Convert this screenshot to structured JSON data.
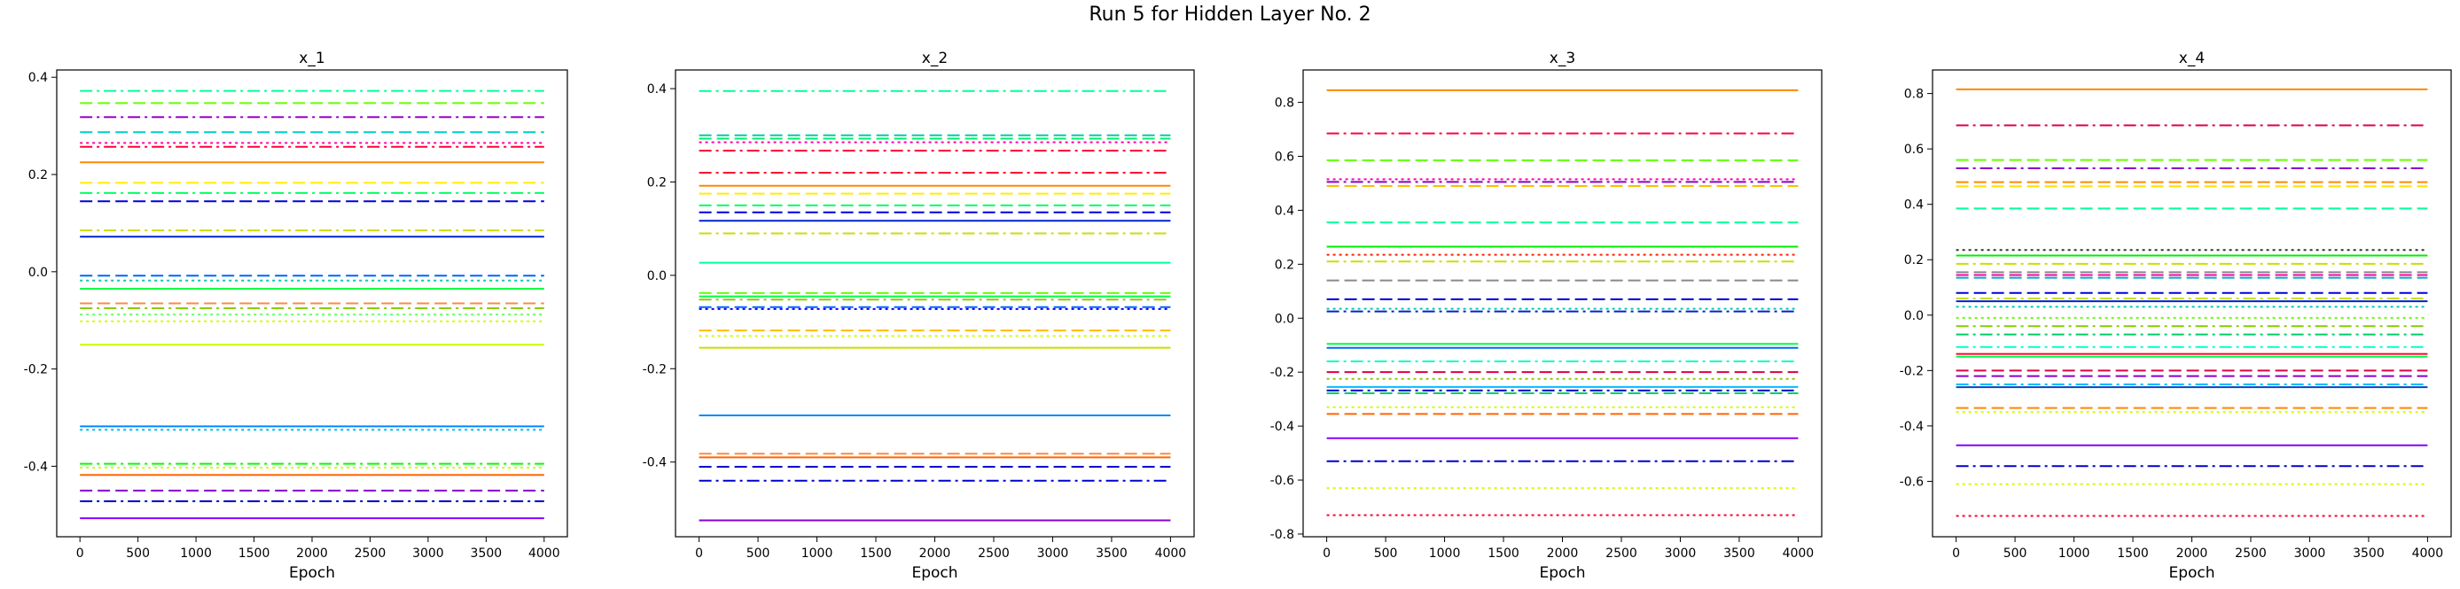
{
  "figure": {
    "suptitle": "Run 5 for Hidden Layer No. 2"
  },
  "chart_data": [
    {
      "type": "line",
      "title": "x_1",
      "xlabel": "Epoch",
      "ylabel": "",
      "xlim": [
        -200,
        4200
      ],
      "ylim": [
        -0.545,
        0.415
      ],
      "xticks": [
        0,
        500,
        1000,
        1500,
        2000,
        2500,
        3000,
        3500,
        4000
      ],
      "yticks": [
        -0.4,
        -0.2,
        0.0,
        0.2,
        0.4
      ],
      "x_range": [
        0,
        4000
      ],
      "series": [
        {
          "color": "#00ff99",
          "style": "dashdot",
          "value": 0.372
        },
        {
          "color": "#66ff00",
          "style": "dashed",
          "value": 0.347
        },
        {
          "color": "#9900cc",
          "style": "dashdot",
          "value": 0.318
        },
        {
          "color": "#00cccc",
          "style": "dashed",
          "value": 0.287
        },
        {
          "color": "#ff00aa",
          "style": "dotted",
          "value": 0.265
        },
        {
          "color": "#ff0033",
          "style": "dashdot",
          "value": 0.257
        },
        {
          "color": "#ff8800",
          "style": "solid",
          "value": 0.225
        },
        {
          "color": "#ffee00",
          "style": "dashed",
          "value": 0.183
        },
        {
          "color": "#00ff66",
          "style": "dashdot",
          "value": 0.162
        },
        {
          "color": "#0000dd",
          "style": "dashed",
          "value": 0.145
        },
        {
          "color": "#ccdd00",
          "style": "dashdot",
          "value": 0.085
        },
        {
          "color": "#0022cc",
          "style": "solid",
          "value": 0.072
        },
        {
          "color": "#0066ff",
          "style": "dashed",
          "value": -0.008
        },
        {
          "color": "#00ccaa",
          "style": "dotted",
          "value": -0.018
        },
        {
          "color": "#00ff44",
          "style": "solid",
          "value": -0.035
        },
        {
          "color": "#ff8844",
          "style": "dashed",
          "value": -0.065
        },
        {
          "color": "#88cc00",
          "style": "dashdot",
          "value": -0.075
        },
        {
          "color": "#66ff66",
          "style": "dotted",
          "value": -0.088
        },
        {
          "color": "#ccff00",
          "style": "dotted",
          "value": -0.102
        },
        {
          "color": "#ccff00",
          "style": "solid",
          "value": -0.15
        },
        {
          "color": "#0088ff",
          "style": "solid",
          "value": -0.318
        },
        {
          "color": "#00bbff",
          "style": "dotted",
          "value": -0.325
        },
        {
          "color": "#00ff00",
          "style": "dashdot",
          "value": -0.395
        },
        {
          "color": "#ccff00",
          "style": "dotted",
          "value": -0.403
        },
        {
          "color": "#ff6600",
          "style": "solid",
          "value": -0.418
        },
        {
          "color": "#8800cc",
          "style": "dashed",
          "value": -0.45
        },
        {
          "color": "#0000cc",
          "style": "dashdot",
          "value": -0.472
        },
        {
          "color": "#8800ff",
          "style": "solid",
          "value": -0.507
        }
      ]
    },
    {
      "type": "line",
      "title": "x_2",
      "xlabel": "Epoch",
      "ylabel": "",
      "xlim": [
        -200,
        4200
      ],
      "ylim": [
        -0.56,
        0.44
      ],
      "xticks": [
        0,
        500,
        1000,
        1500,
        2000,
        2500,
        3000,
        3500,
        4000
      ],
      "yticks": [
        -0.4,
        -0.2,
        0.0,
        0.2,
        0.4
      ],
      "x_range": [
        0,
        4000
      ],
      "series": [
        {
          "color": "#00ff99",
          "style": "dashdot",
          "value": 0.395
        },
        {
          "color": "#00ccaa",
          "style": "dashed",
          "value": 0.3
        },
        {
          "color": "#00ee66",
          "style": "dashed",
          "value": 0.293
        },
        {
          "color": "#ff00aa",
          "style": "dotted",
          "value": 0.285
        },
        {
          "color": "#ff0033",
          "style": "dashdot",
          "value": 0.267
        },
        {
          "color": "#ff0033",
          "style": "dashdot",
          "value": 0.22
        },
        {
          "color": "#ff8800",
          "style": "solid",
          "value": 0.192
        },
        {
          "color": "#ffee00",
          "style": "dashed",
          "value": 0.175
        },
        {
          "color": "#00ff66",
          "style": "dashed",
          "value": 0.15
        },
        {
          "color": "#0000dd",
          "style": "dashed",
          "value": 0.135
        },
        {
          "color": "#0022cc",
          "style": "solid",
          "value": 0.117
        },
        {
          "color": "#ccdd00",
          "style": "dashdot",
          "value": 0.09
        },
        {
          "color": "#00ff99",
          "style": "solid",
          "value": 0.027
        },
        {
          "color": "#66ff00",
          "style": "dashed",
          "value": -0.038
        },
        {
          "color": "#00ff44",
          "style": "solid",
          "value": -0.045
        },
        {
          "color": "#88cc00",
          "style": "dashdot",
          "value": -0.052
        },
        {
          "color": "#0066ff",
          "style": "dashed",
          "value": -0.068
        },
        {
          "color": "#0000ff",
          "style": "dotted",
          "value": -0.072
        },
        {
          "color": "#ffbb00",
          "style": "dashed",
          "value": -0.118
        },
        {
          "color": "#ccff00",
          "style": "dotted",
          "value": -0.13
        },
        {
          "color": "#ccdd00",
          "style": "solid",
          "value": -0.155
        },
        {
          "color": "#0088ff",
          "style": "solid",
          "value": -0.3
        },
        {
          "color": "#ff8844",
          "style": "dashed",
          "value": -0.382
        },
        {
          "color": "#ff6600",
          "style": "solid",
          "value": -0.39
        },
        {
          "color": "#0000cc",
          "style": "dashed",
          "value": -0.41
        },
        {
          "color": "#0000cc",
          "style": "dashdot",
          "value": -0.44
        },
        {
          "color": "#8800cc",
          "style": "solid",
          "value": -0.525
        }
      ]
    },
    {
      "type": "line",
      "title": "x_3",
      "xlabel": "Epoch",
      "ylabel": "",
      "xlim": [
        -200,
        4200
      ],
      "ylim": [
        -0.81,
        0.92
      ],
      "xticks": [
        0,
        500,
        1000,
        1500,
        2000,
        2500,
        3000,
        3500,
        4000
      ],
      "yticks": [
        -0.8,
        -0.6,
        -0.4,
        -0.2,
        0.0,
        0.2,
        0.4,
        0.6,
        0.8
      ],
      "x_range": [
        0,
        4000
      ],
      "series": [
        {
          "color": "#ff8800",
          "style": "solid",
          "value": 0.845
        },
        {
          "color": "#ff0044",
          "style": "dashdot",
          "value": 0.685
        },
        {
          "color": "#66ff00",
          "style": "dashed",
          "value": 0.585
        },
        {
          "color": "#ff00aa",
          "style": "dotted",
          "value": 0.515
        },
        {
          "color": "#8800cc",
          "style": "dashdot",
          "value": 0.505
        },
        {
          "color": "#ffbb00",
          "style": "dashed",
          "value": 0.49
        },
        {
          "color": "#00ff99",
          "style": "dashed",
          "value": 0.355
        },
        {
          "color": "#00ee00",
          "style": "solid",
          "value": 0.265
        },
        {
          "color": "#ff2200",
          "style": "dotted",
          "value": 0.235
        },
        {
          "color": "#ccdd00",
          "style": "dashdot",
          "value": 0.21
        },
        {
          "color": "#888888",
          "style": "dashed",
          "value": 0.14
        },
        {
          "color": "#0000dd",
          "style": "dashed",
          "value": 0.07
        },
        {
          "color": "#00ccaa",
          "style": "dotted",
          "value": 0.035
        },
        {
          "color": "#0022cc",
          "style": "dashdot",
          "value": 0.025
        },
        {
          "color": "#00ff44",
          "style": "solid",
          "value": -0.095
        },
        {
          "color": "#0066ff",
          "style": "solid",
          "value": -0.11
        },
        {
          "color": "#00ffcc",
          "style": "dashdot",
          "value": -0.16
        },
        {
          "color": "#dd0044",
          "style": "dashed",
          "value": -0.2
        },
        {
          "color": "#88cc00",
          "style": "dotted",
          "value": -0.225
        },
        {
          "color": "#00bbff",
          "style": "solid",
          "value": -0.255
        },
        {
          "color": "#0000cc",
          "style": "dashdot",
          "value": -0.268
        },
        {
          "color": "#00cc66",
          "style": "dashed",
          "value": -0.278
        },
        {
          "color": "#ccff00",
          "style": "dotted",
          "value": -0.33
        },
        {
          "color": "#ff6600",
          "style": "dashed",
          "value": -0.355
        },
        {
          "color": "#8800ff",
          "style": "solid",
          "value": -0.445
        },
        {
          "color": "#0000cc",
          "style": "dashdot",
          "value": -0.53
        },
        {
          "color": "#ccff00",
          "style": "dotted",
          "value": -0.63
        },
        {
          "color": "#ff0033",
          "style": "dotted",
          "value": -0.73
        }
      ]
    },
    {
      "type": "line",
      "title": "x_4",
      "xlabel": "Epoch",
      "ylabel": "",
      "xlim": [
        -200,
        4200
      ],
      "ylim": [
        -0.8,
        0.885
      ],
      "xticks": [
        0,
        500,
        1000,
        1500,
        2000,
        2500,
        3000,
        3500,
        4000
      ],
      "yticks": [
        -0.6,
        -0.4,
        -0.2,
        0.0,
        0.2,
        0.4,
        0.6,
        0.8
      ],
      "x_range": [
        0,
        4000
      ],
      "series": [
        {
          "color": "#ff8800",
          "style": "solid",
          "value": 0.815
        },
        {
          "color": "#dd0044",
          "style": "dashdot",
          "value": 0.685
        },
        {
          "color": "#66ff00",
          "style": "dashed",
          "value": 0.56
        },
        {
          "color": "#8800cc",
          "style": "dashdot",
          "value": 0.53
        },
        {
          "color": "#ff8800",
          "style": "dashed",
          "value": 0.48
        },
        {
          "color": "#ffdd00",
          "style": "dashed",
          "value": 0.465
        },
        {
          "color": "#00ff99",
          "style": "dashed",
          "value": 0.385
        },
        {
          "color": "#333333",
          "style": "dotted",
          "value": 0.235
        },
        {
          "color": "#00ee00",
          "style": "solid",
          "value": 0.215
        },
        {
          "color": "#ccdd00",
          "style": "dashdot",
          "value": 0.185
        },
        {
          "color": "#888888",
          "style": "dashed",
          "value": 0.155
        },
        {
          "color": "#ff00aa",
          "style": "dashed",
          "value": 0.145
        },
        {
          "color": "#00aacc",
          "style": "dashed",
          "value": 0.135
        },
        {
          "color": "#0000dd",
          "style": "dashed",
          "value": 0.08
        },
        {
          "color": "#ccdd00",
          "style": "dashdot",
          "value": 0.06
        },
        {
          "color": "#0022cc",
          "style": "solid",
          "value": 0.05
        },
        {
          "color": "#00ccaa",
          "style": "dotted",
          "value": 0.03
        },
        {
          "color": "#66ff00",
          "style": "dotted",
          "value": -0.01
        },
        {
          "color": "#88cc00",
          "style": "dashdot",
          "value": -0.04
        },
        {
          "color": "#00cc66",
          "style": "dashdot",
          "value": -0.07
        },
        {
          "color": "#00ffcc",
          "style": "dashdot",
          "value": -0.115
        },
        {
          "color": "#ff0033",
          "style": "solid",
          "value": -0.14
        },
        {
          "color": "#00ff44",
          "style": "solid",
          "value": -0.15
        },
        {
          "color": "#dd0044",
          "style": "dashed",
          "value": -0.2
        },
        {
          "color": "#8800cc",
          "style": "dashed",
          "value": -0.22
        },
        {
          "color": "#00bbff",
          "style": "dashdot",
          "value": -0.25
        },
        {
          "color": "#0044cc",
          "style": "solid",
          "value": -0.26
        },
        {
          "color": "#ff8800",
          "style": "dashed",
          "value": -0.335
        },
        {
          "color": "#ccff00",
          "style": "dotted",
          "value": -0.35
        },
        {
          "color": "#8800ff",
          "style": "solid",
          "value": -0.47
        },
        {
          "color": "#0000cc",
          "style": "dashdot",
          "value": -0.545
        },
        {
          "color": "#ccff00",
          "style": "dotted",
          "value": -0.61
        },
        {
          "color": "#ff0033",
          "style": "dotted",
          "value": -0.725
        }
      ]
    }
  ]
}
